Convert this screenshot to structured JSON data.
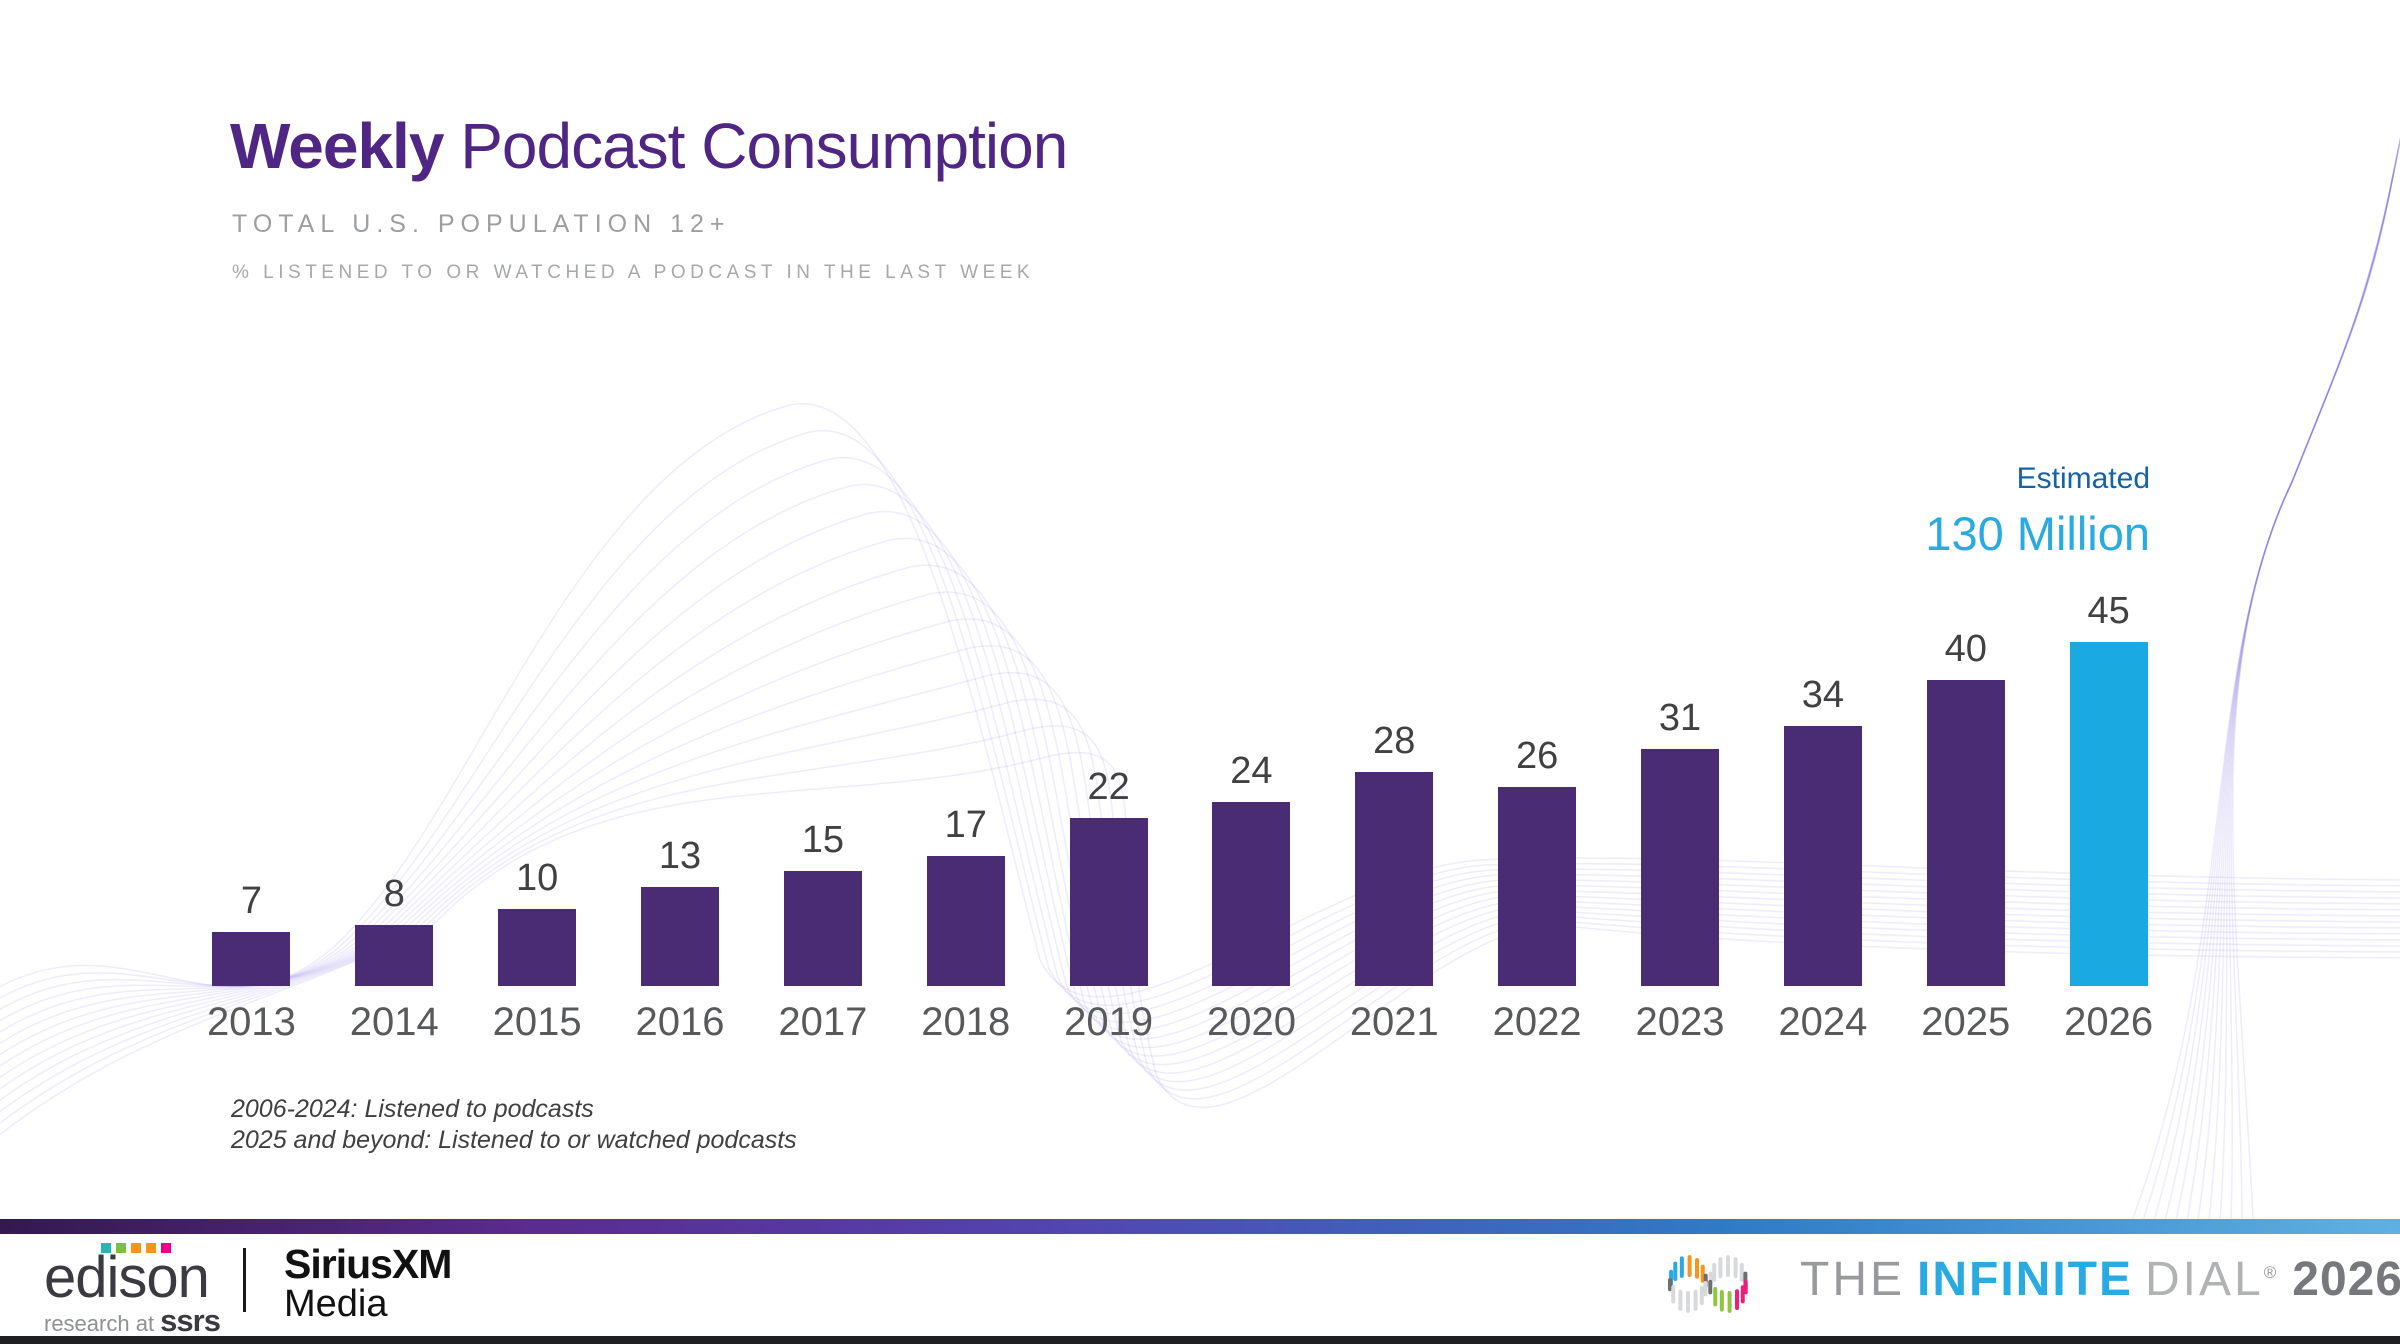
{
  "header": {
    "title_bold": "Weekly",
    "title_rest": " Podcast Consumption",
    "subtitle": "TOTAL U.S. POPULATION 12+",
    "measure_note": "% LISTENED TO OR WATCHED A PODCAST IN THE LAST WEEK"
  },
  "annotation": {
    "label": "Estimated",
    "value": "130 Million"
  },
  "chart_data": {
    "type": "bar",
    "title": "Weekly Podcast Consumption",
    "subtitle": "Total U.S. Population 12+",
    "ylabel": "% listened to or watched a podcast in the last week",
    "categories": [
      "2013",
      "2014",
      "2015",
      "2016",
      "2017",
      "2018",
      "2019",
      "2020",
      "2021",
      "2022",
      "2023",
      "2024",
      "2025",
      "2026"
    ],
    "values": [
      7,
      8,
      10,
      13,
      15,
      17,
      22,
      24,
      28,
      26,
      31,
      34,
      40,
      45
    ],
    "estimated_index": 13,
    "estimated_note": "Estimated 130 Million",
    "ylim": [
      0,
      50
    ],
    "grid": false,
    "data_labels": true,
    "legend": "none"
  },
  "footnotes": {
    "line1": "2006-2024: Listened to podcasts",
    "line2": "2025 and beyond: Listened to or watched podcasts"
  },
  "footer": {
    "edison": {
      "name": "edison",
      "tagline_prefix": "research at ",
      "tagline_bold": "ssrs",
      "dot_colors": [
        "#2BB4B4",
        "#7AC143",
        "#F7941D",
        "#F7941D",
        "#EC008C"
      ]
    },
    "siriusxm": {
      "line1": "SiriusXM",
      "line2": "Media"
    },
    "infinite_dial": {
      "the": "THE",
      "infinite": "INFINITE",
      "dial": "DIAL",
      "reg": "®",
      "year": "2026"
    }
  },
  "colors": {
    "bar_purple": "#4A2C75",
    "bar_blue": "#1BA9E1",
    "title_purple": "#4F2683",
    "estimated_label_blue": "#1464A5",
    "estimated_value_blue": "#29ABE2",
    "wave_stroke": "rgba(124,110,225,0.13)",
    "logo_blue": "#27AAE1",
    "logo_orange": "#F7941D",
    "logo_green": "#8DC63F",
    "logo_pink": "#EC1E79",
    "logo_gray_dark": "#6D6E71",
    "logo_gray_light": "#D8D9DB"
  }
}
